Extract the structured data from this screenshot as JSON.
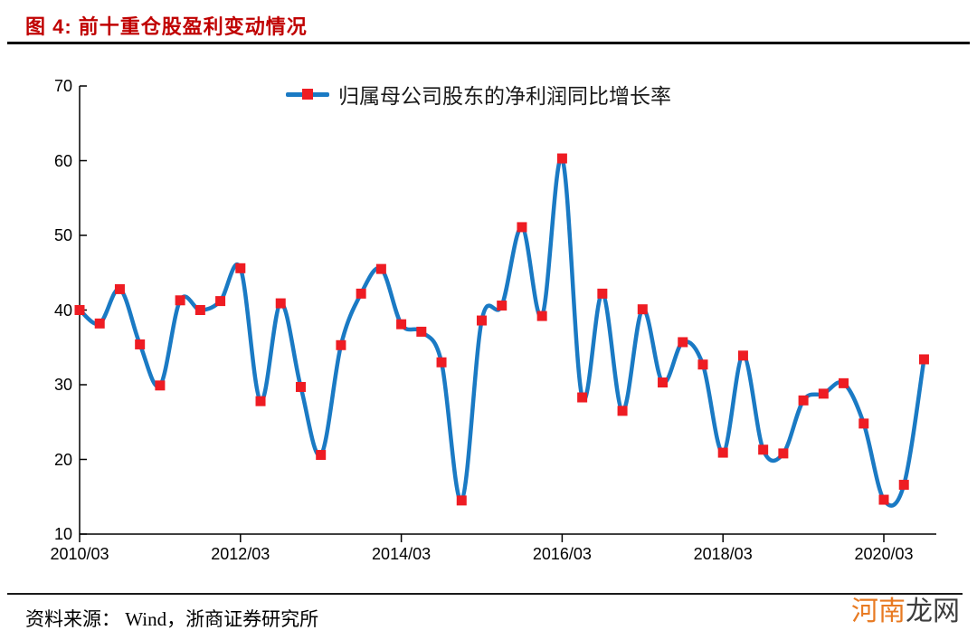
{
  "header": {
    "title": "图 4: 前十重仓股盈利变动情况"
  },
  "legend": {
    "label": "归属母公司股东的净利润同比增长率"
  },
  "footer": {
    "source": "资料来源： Wind，浙商证券研究所"
  },
  "watermark": {
    "part1": "河南",
    "part2": "龙网"
  },
  "colors": {
    "line": "#1a7ac4",
    "marker": "#ee1c23",
    "title": "#c00000",
    "axis": "#000000",
    "watermark_orange": "#e87a22",
    "watermark_dark": "#3d3d3d"
  },
  "chart_data": {
    "type": "line",
    "title": "图 4: 前十重仓股盈利变动情况",
    "series_name": "归属母公司股东的净利润同比增长率",
    "smooth": true,
    "marker": "square",
    "grid": false,
    "legend_position": "top-center",
    "ylim": [
      10,
      70
    ],
    "y_ticks": [
      70,
      60,
      50,
      40,
      30,
      20,
      10
    ],
    "x_tick_labels": [
      "2010/03",
      "2012/03",
      "2014/03",
      "2016/03",
      "2018/03",
      "2020/03"
    ],
    "x_tick_indices": [
      0,
      8,
      16,
      24,
      32,
      40
    ],
    "x": [
      "2010/03",
      "2010/06",
      "2010/09",
      "2010/12",
      "2011/03",
      "2011/06",
      "2011/09",
      "2011/12",
      "2012/03",
      "2012/06",
      "2012/09",
      "2012/12",
      "2013/03",
      "2013/06",
      "2013/09",
      "2013/12",
      "2014/03",
      "2014/06",
      "2014/09",
      "2014/12",
      "2015/03",
      "2015/06",
      "2015/09",
      "2015/12",
      "2016/03",
      "2016/06",
      "2016/09",
      "2016/12",
      "2017/03",
      "2017/06",
      "2017/09",
      "2017/12",
      "2018/03",
      "2018/06",
      "2018/09",
      "2018/12",
      "2019/03",
      "2019/06",
      "2019/09",
      "2019/12",
      "2020/03",
      "2020/06",
      "2020/09"
    ],
    "values": [
      40.0,
      38.2,
      42.8,
      35.4,
      29.9,
      41.3,
      40.0,
      41.2,
      45.6,
      27.8,
      40.9,
      29.7,
      20.6,
      35.3,
      42.2,
      45.5,
      38.1,
      37.1,
      33.0,
      14.5,
      38.6,
      40.6,
      51.1,
      39.2,
      60.3,
      28.3,
      42.2,
      26.5,
      40.1,
      30.3,
      35.7,
      32.7,
      20.9,
      33.9,
      21.3,
      20.8,
      27.9,
      28.8,
      30.2,
      24.8,
      14.6,
      16.6,
      33.4
    ]
  }
}
